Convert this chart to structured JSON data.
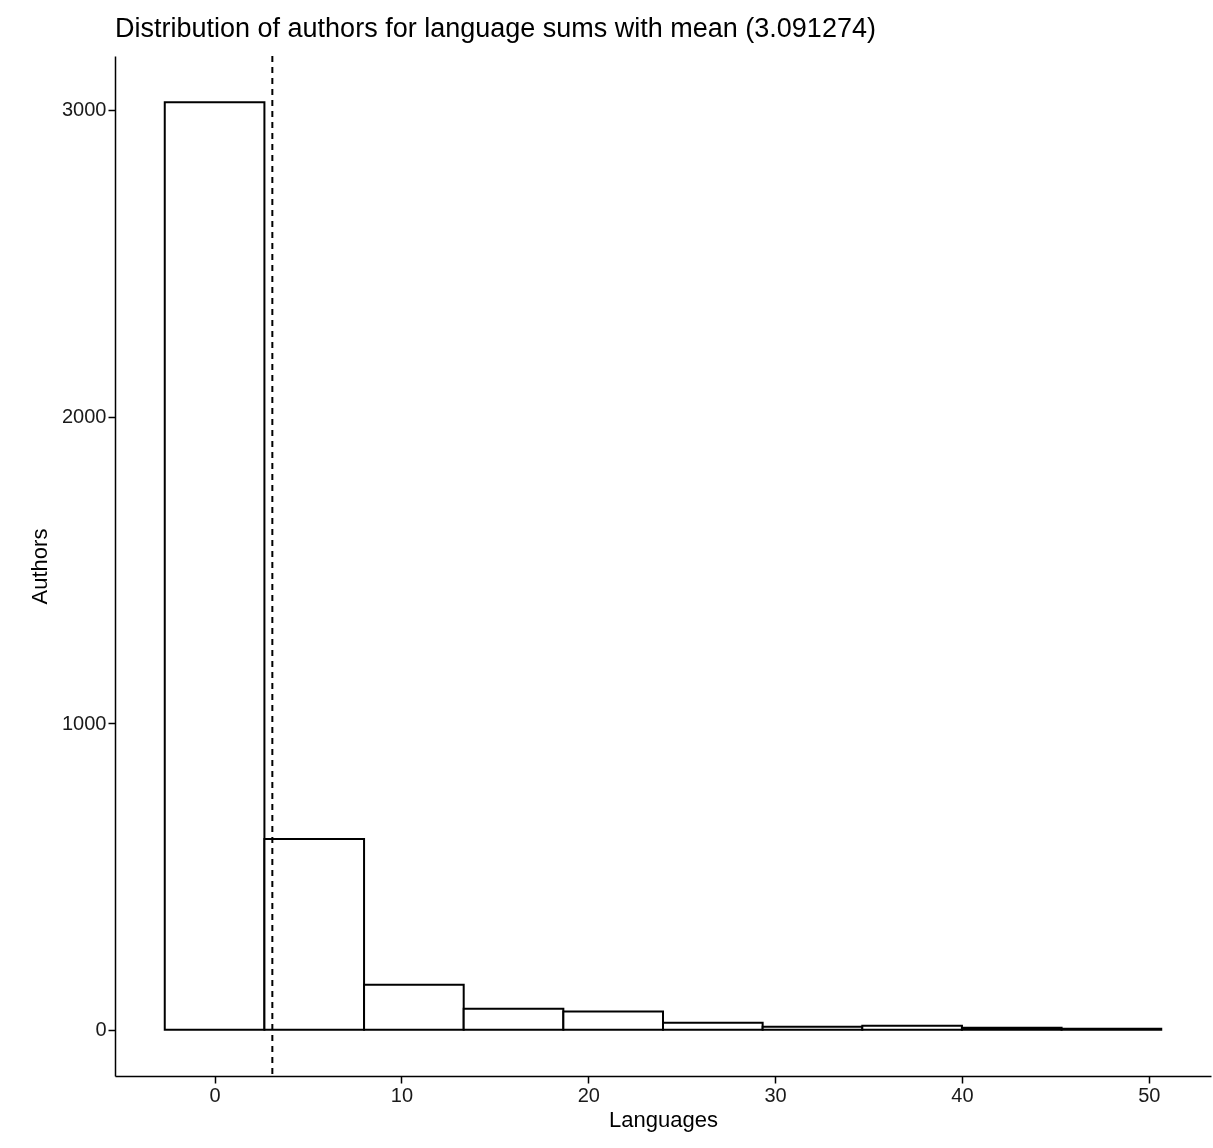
{
  "chart_data": {
    "type": "histogram",
    "title": "Distribution of authors for language sums with mean (3.091274)",
    "xlabel": "Languages",
    "ylabel": "Authors",
    "bins": [
      -2.667,
      2.667,
      8,
      13.333,
      18.667,
      24,
      29.333,
      34.667,
      40,
      45.333,
      50.667
    ],
    "values": [
      3025,
      622,
      147,
      68,
      59,
      23,
      10,
      13,
      6,
      3
    ],
    "color": "#ffffff",
    "xlim": [
      -5.33,
      53.33
    ],
    "xticks": [
      0,
      10,
      20,
      30,
      40,
      50
    ],
    "ylim": [
      -151,
      3176
    ],
    "yticks": [
      0,
      1000,
      2000,
      3000
    ],
    "ref_lines": [
      {
        "axis": "x",
        "value": 3.091274,
        "label": null,
        "line_style": "dashed",
        "color": "#000000"
      }
    ],
    "grid": false
  }
}
